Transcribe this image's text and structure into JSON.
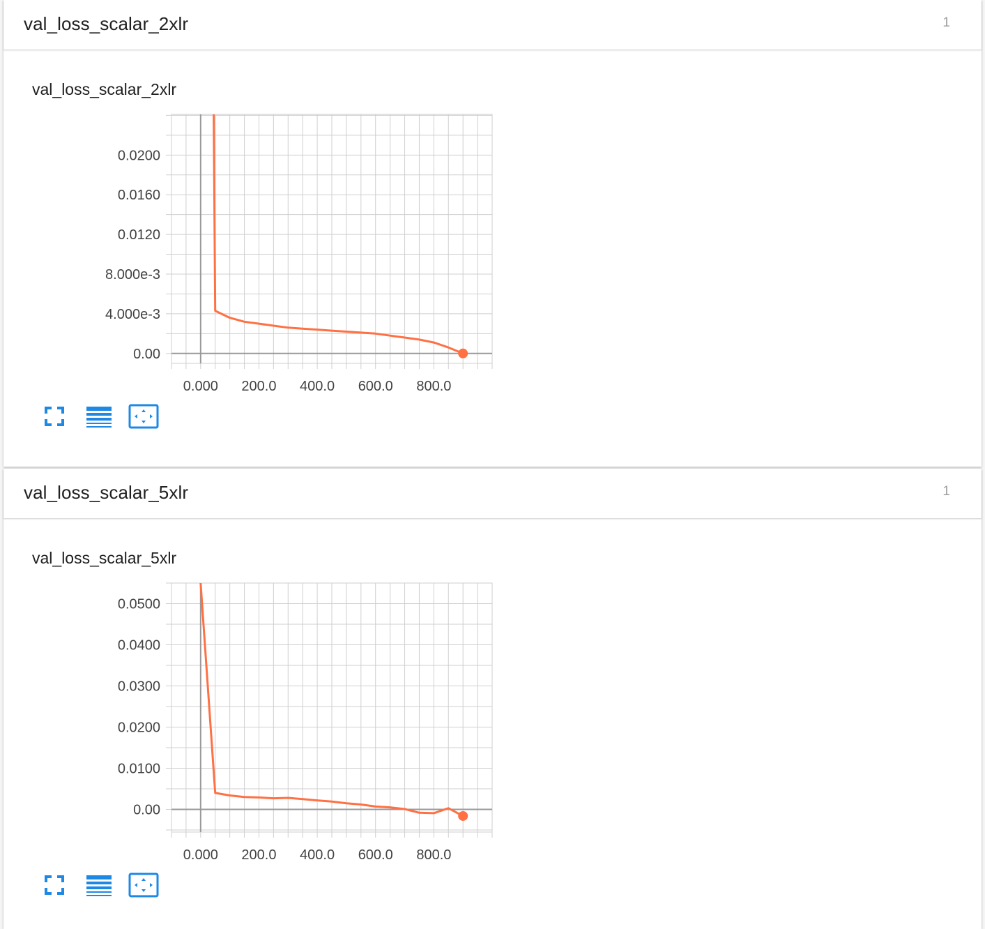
{
  "colors": {
    "series": "#ff7043",
    "icon": "#1e88e5",
    "grid": "#cfcfcf",
    "axis": "#999999"
  },
  "cards": [
    {
      "header_title": "val_loss_scalar_2xlr",
      "count": "1",
      "chart_title": "val_loss_scalar_2xlr",
      "icons": [
        "fullscreen-icon",
        "data-table-icon",
        "fit-domain-icon"
      ]
    },
    {
      "header_title": "val_loss_scalar_5xlr",
      "count": "1",
      "chart_title": "val_loss_scalar_5xlr",
      "icons": [
        "fullscreen-icon",
        "data-table-icon",
        "fit-domain-icon"
      ]
    }
  ],
  "chart_data": [
    {
      "type": "line",
      "title": "val_loss_scalar_2xlr",
      "xlabel": "",
      "ylabel": "",
      "xlim": [
        -100,
        1000
      ],
      "ylim": [
        -0.001,
        0.0241
      ],
      "x_ticks": [
        0,
        200,
        400,
        600,
        800
      ],
      "x_tick_labels": [
        "0.000",
        "200.0",
        "400.0",
        "600.0",
        "800.0"
      ],
      "y_ticks": [
        0,
        0.004,
        0.008,
        0.012,
        0.016,
        0.02
      ],
      "y_tick_labels": [
        "0.00",
        "4.000e-3",
        "8.000e-3",
        "0.0120",
        "0.0160",
        "0.0200"
      ],
      "grid": true,
      "series": [
        {
          "values": [
            [
              45,
              0.0241
            ],
            [
              50,
              0.0043
            ],
            [
              100,
              0.0036
            ],
            [
              150,
              0.0032
            ],
            [
              200,
              0.003
            ],
            [
              250,
              0.0028
            ],
            [
              300,
              0.0026
            ],
            [
              350,
              0.0025
            ],
            [
              400,
              0.0024
            ],
            [
              450,
              0.0023
            ],
            [
              500,
              0.0022
            ],
            [
              550,
              0.0021
            ],
            [
              600,
              0.002
            ],
            [
              650,
              0.0018
            ],
            [
              700,
              0.0016
            ],
            [
              750,
              0.0014
            ],
            [
              800,
              0.0011
            ],
            [
              850,
              0.0006
            ],
            [
              900,
              0.0
            ]
          ]
        }
      ]
    },
    {
      "type": "line",
      "title": "val_loss_scalar_5xlr",
      "xlabel": "",
      "ylabel": "",
      "xlim": [
        -100,
        1000
      ],
      "ylim": [
        -0.0055,
        0.055
      ],
      "x_ticks": [
        0,
        200,
        400,
        600,
        800
      ],
      "x_tick_labels": [
        "0.000",
        "200.0",
        "400.0",
        "600.0",
        "800.0"
      ],
      "y_ticks": [
        0,
        0.01,
        0.02,
        0.03,
        0.04,
        0.05
      ],
      "y_tick_labels": [
        "0.00",
        "0.0100",
        "0.0200",
        "0.0300",
        "0.0400",
        "0.0500"
      ],
      "grid": true,
      "series": [
        {
          "values": [
            [
              0,
              0.055
            ],
            [
              50,
              0.004
            ],
            [
              100,
              0.0034
            ],
            [
              150,
              0.003
            ],
            [
              200,
              0.0029
            ],
            [
              250,
              0.0027
            ],
            [
              300,
              0.0028
            ],
            [
              350,
              0.0025
            ],
            [
              400,
              0.0022
            ],
            [
              450,
              0.0019
            ],
            [
              500,
              0.0015
            ],
            [
              550,
              0.0012
            ],
            [
              600,
              0.0007
            ],
            [
              650,
              0.0005
            ],
            [
              700,
              0.0001
            ],
            [
              750,
              -0.0008
            ],
            [
              800,
              -0.0009
            ],
            [
              850,
              0.0003
            ],
            [
              900,
              -0.0016
            ]
          ]
        }
      ]
    }
  ]
}
